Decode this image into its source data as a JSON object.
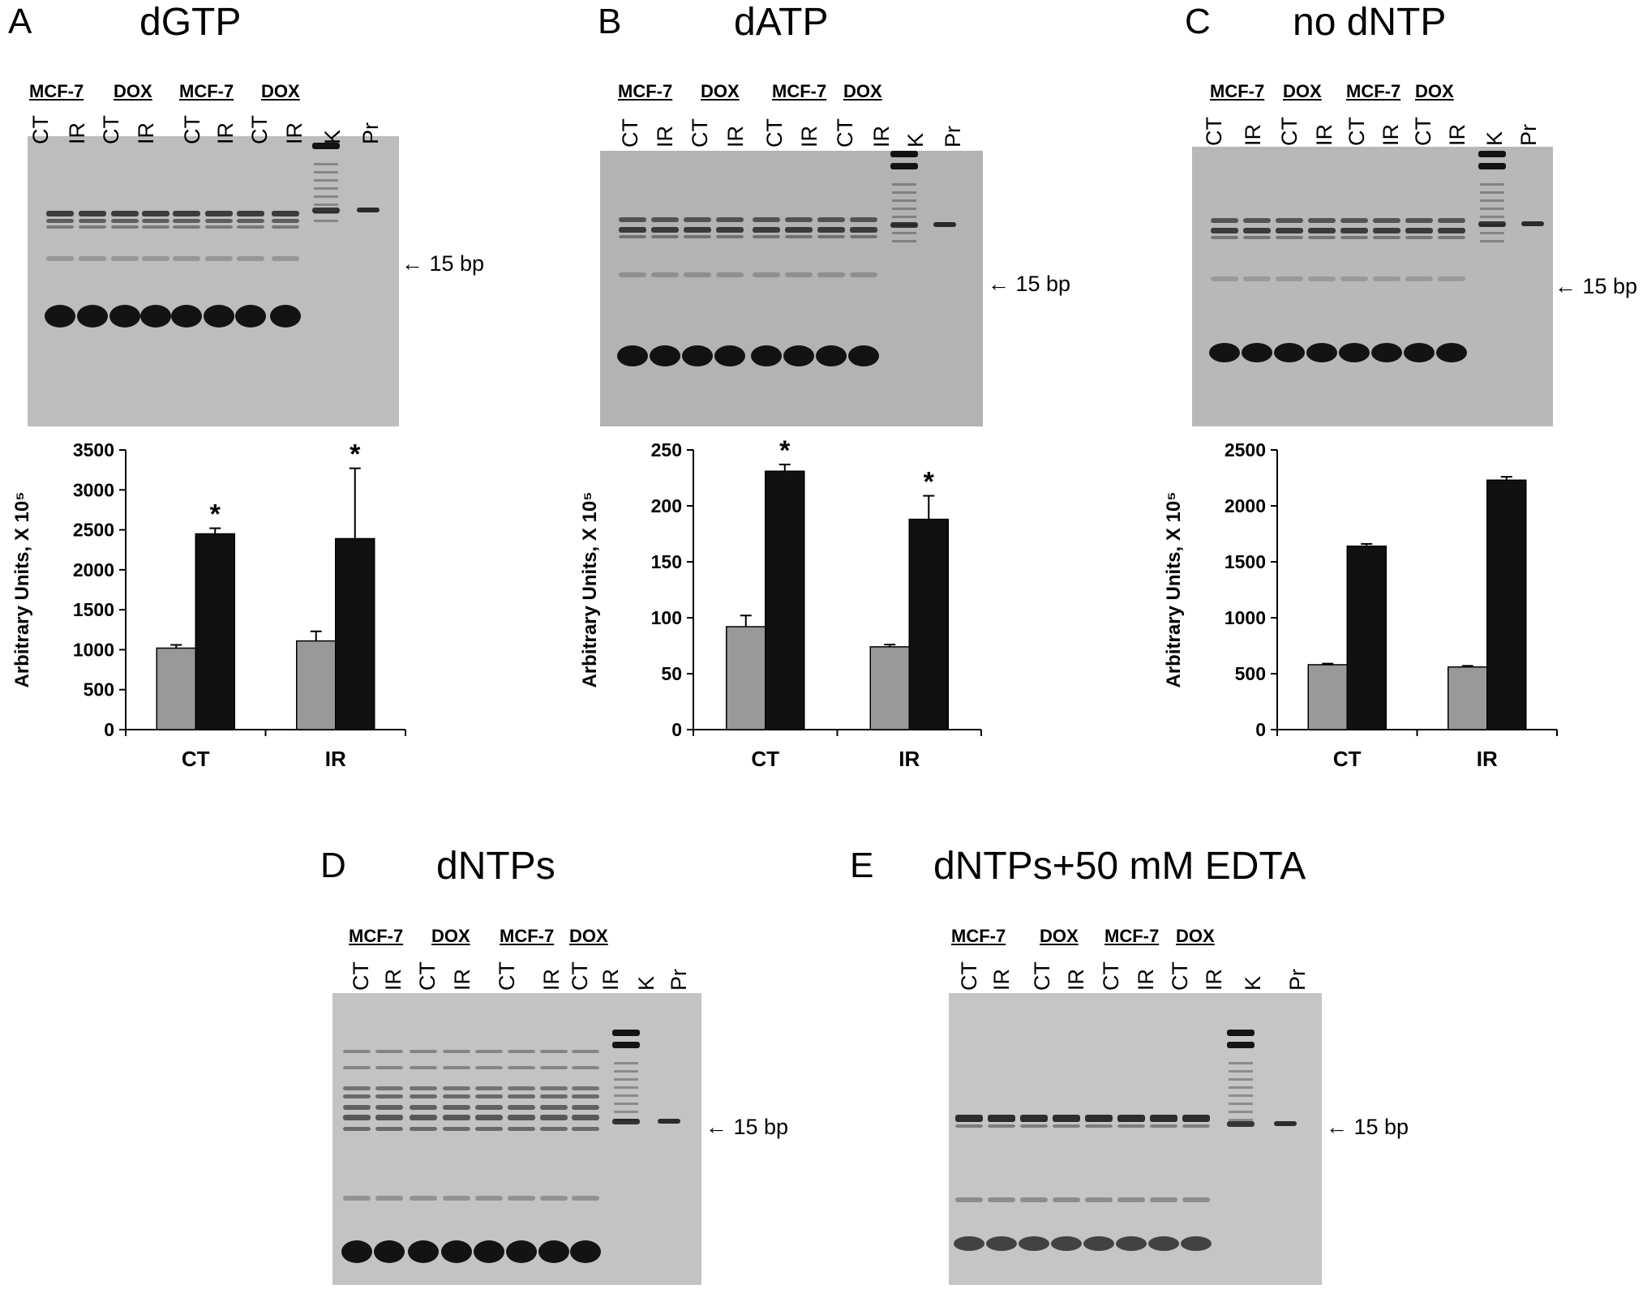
{
  "panels": {
    "A": {
      "letter": "A",
      "title": "dGTP"
    },
    "B": {
      "letter": "B",
      "title": "dATP"
    },
    "C": {
      "letter": "C",
      "title": "no dNTP"
    },
    "D": {
      "letter": "D",
      "title": "dNTPs"
    },
    "E": {
      "letter": "E",
      "title": "dNTPs+50 mM EDTA"
    }
  },
  "group_labels": [
    "MCF-7",
    "DOX",
    "MCF-7",
    "DOX"
  ],
  "lane_labels": [
    "CT",
    "IR",
    "CT",
    "IR",
    "CT",
    "IR",
    "CT",
    "IR",
    "K",
    "Pr"
  ],
  "marker_label": "← 15 bp",
  "chart_data": [
    {
      "panel": "A",
      "type": "bar",
      "categories": [
        "CT",
        "IR"
      ],
      "series": [
        {
          "values": [
            1020,
            1110
          ],
          "errors": [
            40,
            120
          ],
          "color": "#999999"
        },
        {
          "values": [
            2450,
            2390
          ],
          "errors": [
            70,
            880
          ],
          "color": "#111111"
        }
      ],
      "significance": [
        "*",
        "*"
      ],
      "ylabel": "Arbitrary Units, X 10⁵",
      "ylim": [
        0,
        3500
      ],
      "yticks": [
        0,
        500,
        1000,
        1500,
        2000,
        2500,
        3000,
        3500
      ]
    },
    {
      "panel": "B",
      "type": "bar",
      "categories": [
        "CT",
        "IR"
      ],
      "series": [
        {
          "values": [
            92,
            74
          ],
          "errors": [
            10,
            2
          ],
          "color": "#999999"
        },
        {
          "values": [
            231,
            188
          ],
          "errors": [
            6,
            21
          ],
          "color": "#111111"
        }
      ],
      "significance": [
        "*",
        "*"
      ],
      "ylabel": "Arbitrary Units, X 10⁵",
      "ylim": [
        0,
        250
      ],
      "yticks": [
        0,
        50,
        100,
        150,
        200,
        250
      ]
    },
    {
      "panel": "C",
      "type": "bar",
      "categories": [
        "CT",
        "IR"
      ],
      "series": [
        {
          "values": [
            580,
            560
          ],
          "errors": [
            10,
            10
          ],
          "color": "#999999"
        },
        {
          "values": [
            1640,
            2230
          ],
          "errors": [
            20,
            30
          ],
          "color": "#111111"
        }
      ],
      "significance": [
        "",
        ""
      ],
      "ylabel": "Arbitrary Units, X 10⁵",
      "ylim": [
        0,
        2500
      ],
      "yticks": [
        0,
        500,
        1000,
        1500,
        2000,
        2500
      ]
    }
  ]
}
